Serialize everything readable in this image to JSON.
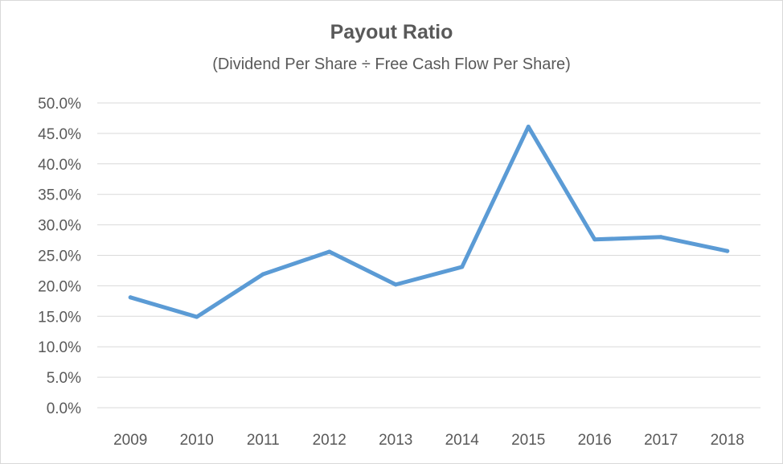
{
  "chart_data": {
    "type": "line",
    "title": "Payout Ratio",
    "subtitle": "(Dividend Per Share ÷ Free Cash Flow Per Share)",
    "xlabel": "",
    "ylabel": "",
    "categories": [
      "2009",
      "2010",
      "2011",
      "2012",
      "2013",
      "2014",
      "2015",
      "2016",
      "2017",
      "2018"
    ],
    "series": [
      {
        "values": [
          18.1,
          14.9,
          21.9,
          25.6,
          20.2,
          23.1,
          46.1,
          27.6,
          28.0,
          25.7
        ],
        "color": "#5b9bd5"
      }
    ],
    "ylim": [
      0,
      50
    ],
    "yticks": [
      "0.0%",
      "5.0%",
      "10.0%",
      "15.0%",
      "20.0%",
      "25.0%",
      "30.0%",
      "35.0%",
      "40.0%",
      "45.0%",
      "50.0%"
    ],
    "grid": true,
    "legend": "none"
  }
}
